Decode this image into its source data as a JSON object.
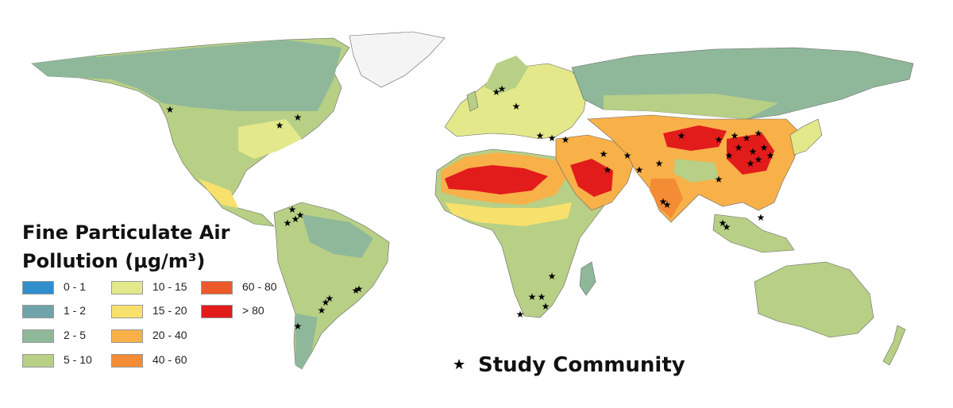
{
  "legend": {
    "title_line1": "Fine Particulate Air",
    "title_line2": "Pollution (μg/m³)",
    "classes": [
      {
        "label": "0 - 1",
        "color": "#2e8fcc"
      },
      {
        "label": "1 - 2",
        "color": "#6fa3a8"
      },
      {
        "label": "2 - 5",
        "color": "#8fb89a"
      },
      {
        "label": "5 - 10",
        "color": "#b8cf86"
      },
      {
        "label": "10 - 15",
        "color": "#e3e88a"
      },
      {
        "label": "15 - 20",
        "color": "#f7e16c"
      },
      {
        "label": "20 - 40",
        "color": "#f8b048"
      },
      {
        "label": "40 - 60",
        "color": "#f38c35"
      },
      {
        "label": "60 - 80",
        "color": "#ec5a2a"
      },
      {
        "label": "> 80",
        "color": "#e21b1b"
      }
    ],
    "study_label": "Study Community",
    "study_icon": "star-icon"
  }
}
